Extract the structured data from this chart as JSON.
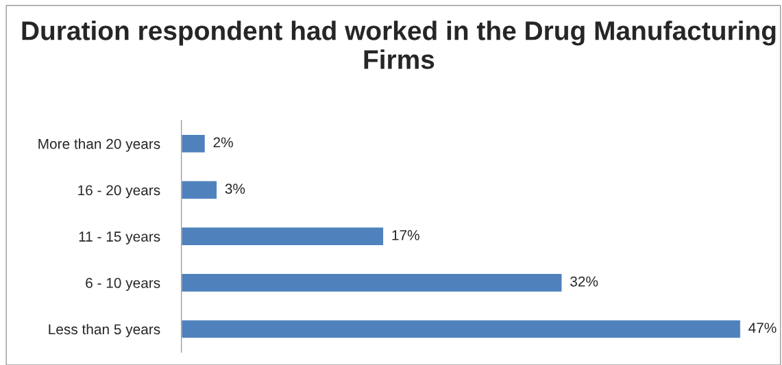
{
  "chart_data": {
    "type": "bar",
    "orientation": "horizontal",
    "title": "Duration respondent had worked in the Drug Manufacturing Firms",
    "categories": [
      "More than 20 years",
      "16 - 20 years",
      "11 - 15 years",
      "6 - 10 years",
      "Less than 5 years"
    ],
    "values": [
      2,
      3,
      17,
      32,
      47
    ],
    "value_labels": [
      "2%",
      "3%",
      "17%",
      "32%",
      "47%"
    ],
    "color": "#4f81bd",
    "grid": false,
    "legend": false
  }
}
